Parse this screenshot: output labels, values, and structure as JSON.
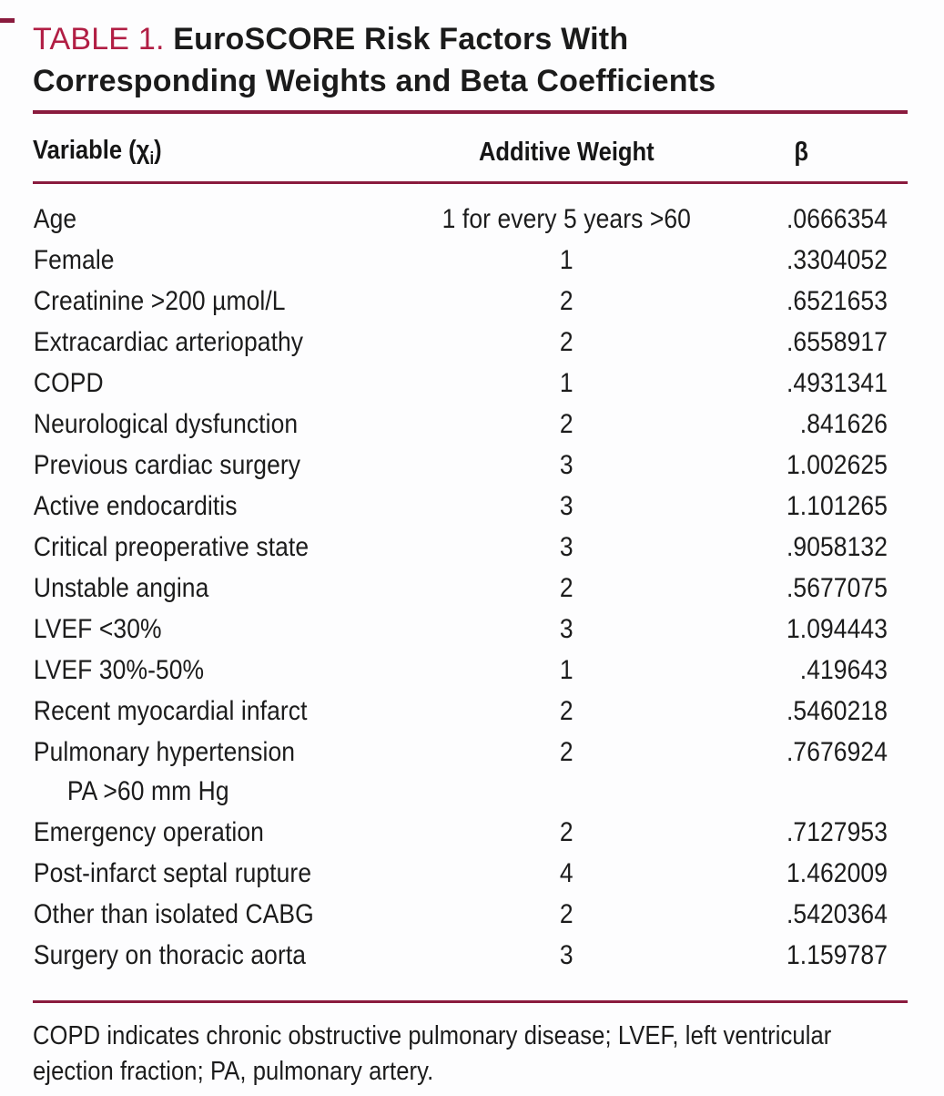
{
  "page": {
    "title_label": "TABLE 1.",
    "title_text": " EuroSCORE Risk Factors With Corresponding Weights and Beta Coefficients"
  },
  "table": {
    "header": {
      "variable_prefix": "Variable (",
      "variable_symbol": "χ",
      "variable_subscript": "i",
      "variable_suffix": ")",
      "weight": "Additive Weight",
      "beta": "β"
    },
    "rows": [
      {
        "variable": "Age",
        "weight": "1 for every 5 years >60",
        "beta": ".0666354"
      },
      {
        "variable": "Female",
        "weight": "1",
        "beta": ".3304052"
      },
      {
        "variable": "Creatinine >200 µmol/L",
        "weight": "2",
        "beta": ".6521653"
      },
      {
        "variable": "Extracardiac arteriopathy",
        "weight": "2",
        "beta": ".6558917"
      },
      {
        "variable": "COPD",
        "weight": "1",
        "beta": ".4931341"
      },
      {
        "variable": "Neurological dysfunction",
        "weight": "2",
        "beta": ".841626"
      },
      {
        "variable": "Previous cardiac surgery",
        "weight": "3",
        "beta": "1.002625"
      },
      {
        "variable": "Active endocarditis",
        "weight": "3",
        "beta": "1.101265"
      },
      {
        "variable": "Critical preoperative state",
        "weight": "3",
        "beta": ".9058132"
      },
      {
        "variable": "Unstable angina",
        "weight": "2",
        "beta": ".5677075"
      },
      {
        "variable": "LVEF <30%",
        "weight": "3",
        "beta": "1.094443"
      },
      {
        "variable": "LVEF 30%-50%",
        "weight": "1",
        "beta": ".419643"
      },
      {
        "variable": "Recent myocardial infarct",
        "weight": "2",
        "beta": ".5460218"
      },
      {
        "variable": "Pulmonary hypertension",
        "variable_line2": "PA >60 mm Hg",
        "weight": "2",
        "beta": ".7676924"
      },
      {
        "variable": "Emergency operation",
        "weight": "2",
        "beta": ".7127953"
      },
      {
        "variable": "Post-infarct septal rupture",
        "weight": "4",
        "beta": "1.462009"
      },
      {
        "variable": "Other than isolated CABG",
        "weight": "2",
        "beta": ".5420364"
      },
      {
        "variable": "Surgery on thoracic aorta",
        "weight": "3",
        "beta": "1.159787"
      }
    ]
  },
  "footnote": "COPD indicates chronic obstructive pulmonary disease; LVEF, left ventricular ejection fraction; PA, pulmonary artery.",
  "colors": {
    "accent": "#b11e44",
    "rule": "#8a1b3e",
    "text": "#1b1b1b"
  }
}
